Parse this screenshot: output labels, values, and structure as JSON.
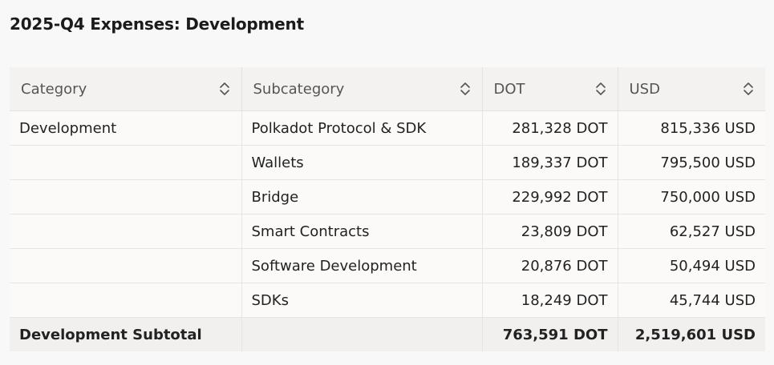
{
  "page": {
    "title": "2025-Q4 Expenses: Development"
  },
  "table": {
    "columns": [
      {
        "label": "Category",
        "icon": "sort-icon"
      },
      {
        "label": "Subcategory",
        "icon": "sort-icon"
      },
      {
        "label": "DOT",
        "icon": "sort-icon"
      },
      {
        "label": "USD",
        "icon": "sort-icon"
      }
    ],
    "rows": [
      {
        "category": "Development",
        "subcategory": "Polkadot Protocol & SDK",
        "dot": "281,328 DOT",
        "usd": "815,336 USD"
      },
      {
        "category": "",
        "subcategory": "Wallets",
        "dot": "189,337 DOT",
        "usd": "795,500 USD"
      },
      {
        "category": "",
        "subcategory": "Bridge",
        "dot": "229,992 DOT",
        "usd": "750,000 USD"
      },
      {
        "category": "",
        "subcategory": "Smart Contracts",
        "dot": "23,809 DOT",
        "usd": "62,527 USD"
      },
      {
        "category": "",
        "subcategory": "Software Development",
        "dot": "20,876 DOT",
        "usd": "50,494 USD"
      },
      {
        "category": "",
        "subcategory": "SDKs",
        "dot": "18,249 DOT",
        "usd": "45,744 USD"
      }
    ],
    "subtotal": {
      "category": "Development Subtotal",
      "subcategory": "",
      "dot": "763,591 DOT",
      "usd": "2,519,601 USD"
    }
  }
}
